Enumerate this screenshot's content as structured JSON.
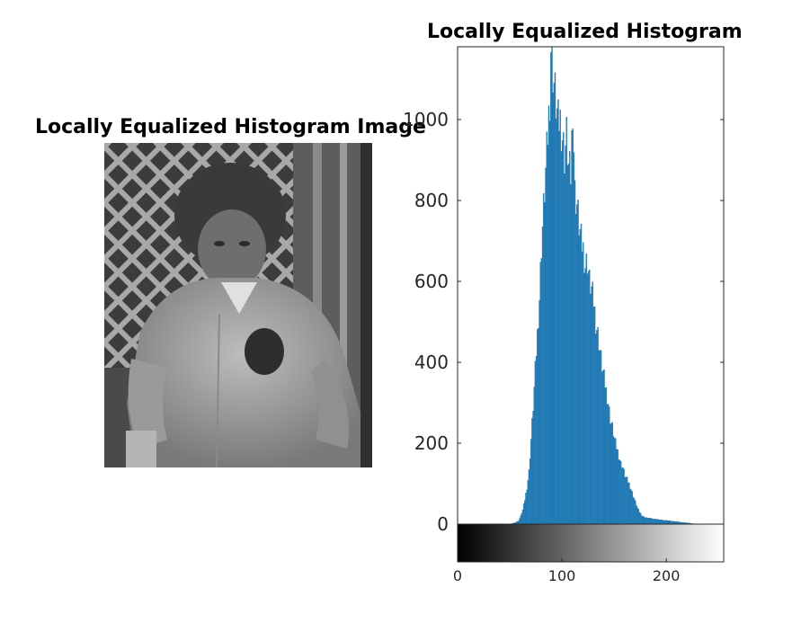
{
  "figure": {
    "image_title": "Locally Equalized Histogram Image",
    "image_description": ""
  },
  "chart_data": {
    "type": "bar",
    "title": "Locally Equalized Histogram",
    "xlabel": "",
    "ylabel": "",
    "xlim": [
      0,
      255
    ],
    "ylim": [
      0,
      1180
    ],
    "x_ticks": [
      0,
      100,
      200
    ],
    "y_ticks": [
      0,
      200,
      400,
      600,
      800,
      1000
    ],
    "bar_color": "#1f86c8",
    "bar_edge_color": "#1a5f8f",
    "colorbar": {
      "type": "grayscale",
      "from": "#000000",
      "to": "#ffffff",
      "range": [
        0,
        255
      ]
    },
    "bins": [
      {
        "x": 0,
        "y": 0
      },
      {
        "x": 50,
        "y": 0
      },
      {
        "x": 54,
        "y": 3
      },
      {
        "x": 58,
        "y": 8
      },
      {
        "x": 60,
        "y": 20
      },
      {
        "x": 62,
        "y": 35
      },
      {
        "x": 64,
        "y": 60
      },
      {
        "x": 66,
        "y": 90
      },
      {
        "x": 68,
        "y": 130
      },
      {
        "x": 70,
        "y": 210
      },
      {
        "x": 72,
        "y": 290
      },
      {
        "x": 74,
        "y": 380
      },
      {
        "x": 76,
        "y": 470
      },
      {
        "x": 78,
        "y": 560
      },
      {
        "x": 80,
        "y": 690
      },
      {
        "x": 82,
        "y": 780
      },
      {
        "x": 84,
        "y": 870
      },
      {
        "x": 86,
        "y": 960
      },
      {
        "x": 88,
        "y": 1060
      },
      {
        "x": 89,
        "y": 1180
      },
      {
        "x": 90,
        "y": 1150
      },
      {
        "x": 92,
        "y": 1090
      },
      {
        "x": 94,
        "y": 1040
      },
      {
        "x": 96,
        "y": 990
      },
      {
        "x": 98,
        "y": 1000
      },
      {
        "x": 100,
        "y": 960
      },
      {
        "x": 102,
        "y": 910
      },
      {
        "x": 104,
        "y": 960
      },
      {
        "x": 106,
        "y": 880
      },
      {
        "x": 108,
        "y": 860
      },
      {
        "x": 110,
        "y": 1040
      },
      {
        "x": 112,
        "y": 820
      },
      {
        "x": 114,
        "y": 790
      },
      {
        "x": 116,
        "y": 740
      },
      {
        "x": 118,
        "y": 700
      },
      {
        "x": 120,
        "y": 680
      },
      {
        "x": 122,
        "y": 640
      },
      {
        "x": 124,
        "y": 650
      },
      {
        "x": 126,
        "y": 600
      },
      {
        "x": 128,
        "y": 580
      },
      {
        "x": 130,
        "y": 550
      },
      {
        "x": 132,
        "y": 500
      },
      {
        "x": 134,
        "y": 470
      },
      {
        "x": 136,
        "y": 430
      },
      {
        "x": 138,
        "y": 390
      },
      {
        "x": 140,
        "y": 360
      },
      {
        "x": 142,
        "y": 330
      },
      {
        "x": 144,
        "y": 300
      },
      {
        "x": 146,
        "y": 260
      },
      {
        "x": 148,
        "y": 240
      },
      {
        "x": 150,
        "y": 210
      },
      {
        "x": 152,
        "y": 190
      },
      {
        "x": 154,
        "y": 170
      },
      {
        "x": 156,
        "y": 150
      },
      {
        "x": 158,
        "y": 140
      },
      {
        "x": 160,
        "y": 120
      },
      {
        "x": 162,
        "y": 110
      },
      {
        "x": 164,
        "y": 100
      },
      {
        "x": 166,
        "y": 85
      },
      {
        "x": 168,
        "y": 70
      },
      {
        "x": 170,
        "y": 55
      },
      {
        "x": 172,
        "y": 40
      },
      {
        "x": 174,
        "y": 30
      },
      {
        "x": 176,
        "y": 22
      },
      {
        "x": 178,
        "y": 18
      },
      {
        "x": 180,
        "y": 16
      },
      {
        "x": 185,
        "y": 14
      },
      {
        "x": 190,
        "y": 12
      },
      {
        "x": 195,
        "y": 10
      },
      {
        "x": 200,
        "y": 9
      },
      {
        "x": 205,
        "y": 7
      },
      {
        "x": 210,
        "y": 6
      },
      {
        "x": 215,
        "y": 4
      },
      {
        "x": 220,
        "y": 3
      },
      {
        "x": 225,
        "y": 1
      },
      {
        "x": 230,
        "y": 0
      },
      {
        "x": 255,
        "y": 0
      }
    ]
  }
}
